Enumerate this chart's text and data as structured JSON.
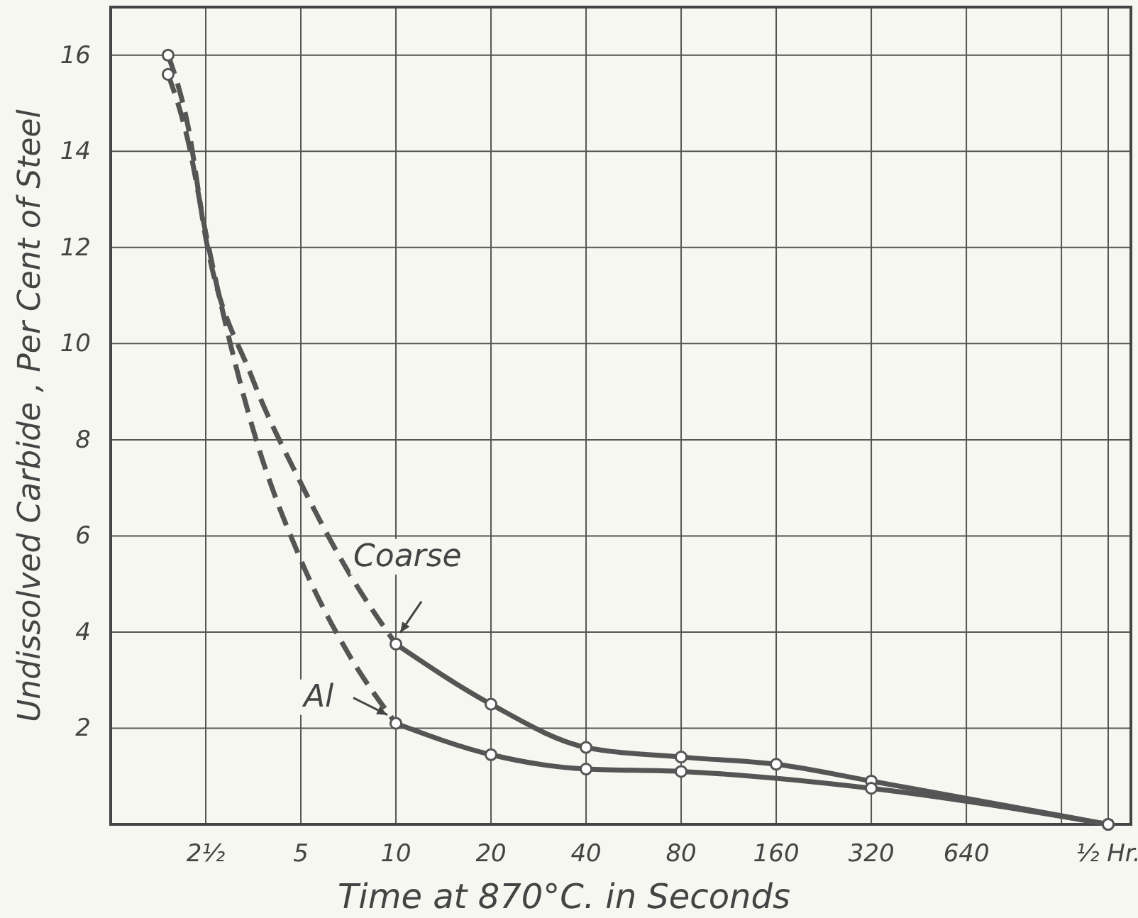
{
  "chart_data": {
    "type": "line",
    "xlabel": "Time at 870°C. in Seconds",
    "ylabel": "Undissolved Carbide , Per Cent of Steel",
    "log": "x",
    "xlim": [
      1.25,
      2124
    ],
    "ylim": [
      0,
      17
    ],
    "xticks": [
      {
        "value": 2.5,
        "label": "2½"
      },
      5,
      10,
      20,
      40,
      80,
      160,
      320,
      640,
      {
        "value": 1280,
        "label": null
      },
      {
        "value": 1800,
        "label": "½ Hr."
      }
    ],
    "yticks": [
      {
        "value": 0,
        "label": null
      },
      2,
      4,
      6,
      8,
      10,
      12,
      14,
      16
    ],
    "grid": true,
    "marker": "circle",
    "series": [
      {
        "color": "#555555",
        "line_style": "dashed",
        "marker": "none",
        "x": [
          1.9,
          2.2,
          2.5,
          3.5,
          5,
          7,
          10
        ],
        "values": [
          16,
          14.5,
          12.2,
          9.3,
          7.1,
          5.3,
          3.75
        ]
      },
      {
        "color": "#555555",
        "line_style": "dashed",
        "marker": "none",
        "x": [
          1.9,
          2.2,
          2.5,
          3.5,
          5,
          7,
          10
        ],
        "values": [
          15.6,
          14.2,
          12.3,
          8.3,
          5.5,
          3.6,
          2.1
        ]
      },
      {
        "type": "scatter",
        "color": "#555555",
        "x": [
          1.9,
          1.9
        ],
        "values": [
          16,
          15.6
        ]
      },
      {
        "name": "Coarse",
        "color": "#555555",
        "line_style": "solid",
        "x": [
          10,
          20,
          40,
          80,
          160,
          320,
          1800
        ],
        "values": [
          3.75,
          2.5,
          1.6,
          1.4,
          1.25,
          0.9,
          0
        ]
      },
      {
        "name": "Al",
        "color": "#555555",
        "line_style": "solid",
        "x": [
          10,
          20,
          40,
          80,
          320,
          1800
        ],
        "values": [
          2.1,
          1.45,
          1.15,
          1.1,
          0.75,
          0
        ]
      }
    ]
  }
}
